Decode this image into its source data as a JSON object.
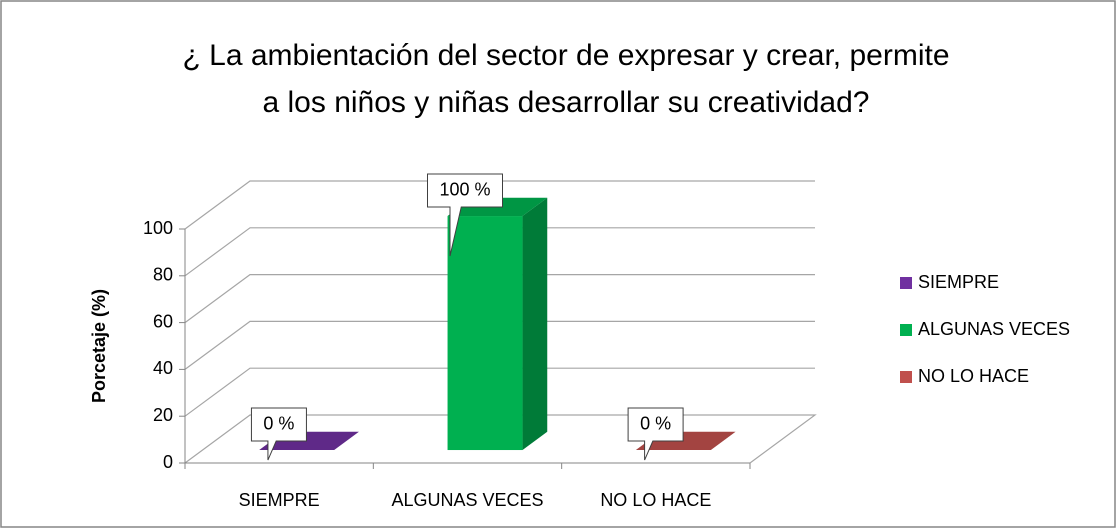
{
  "chart_data": {
    "type": "bar3d",
    "title": [
      "¿ La ambientación del sector de expresar y crear, permite",
      "a los niños y niñas desarrollar su creatividad?"
    ],
    "y_label": "Porcetaje (%)",
    "categories": [
      "SIEMPRE",
      "ALGUNAS VECES",
      "NO LO HACE"
    ],
    "values": [
      0,
      100,
      0
    ],
    "value_labels": [
      "0 %",
      "100 %",
      "0 %"
    ],
    "colors": [
      "#7030a0",
      "#00b050",
      "#c0504d"
    ],
    "ylim": [
      0,
      100
    ],
    "yticks": [
      0,
      20,
      40,
      60,
      80,
      100
    ],
    "grid": true,
    "legend": "right"
  }
}
